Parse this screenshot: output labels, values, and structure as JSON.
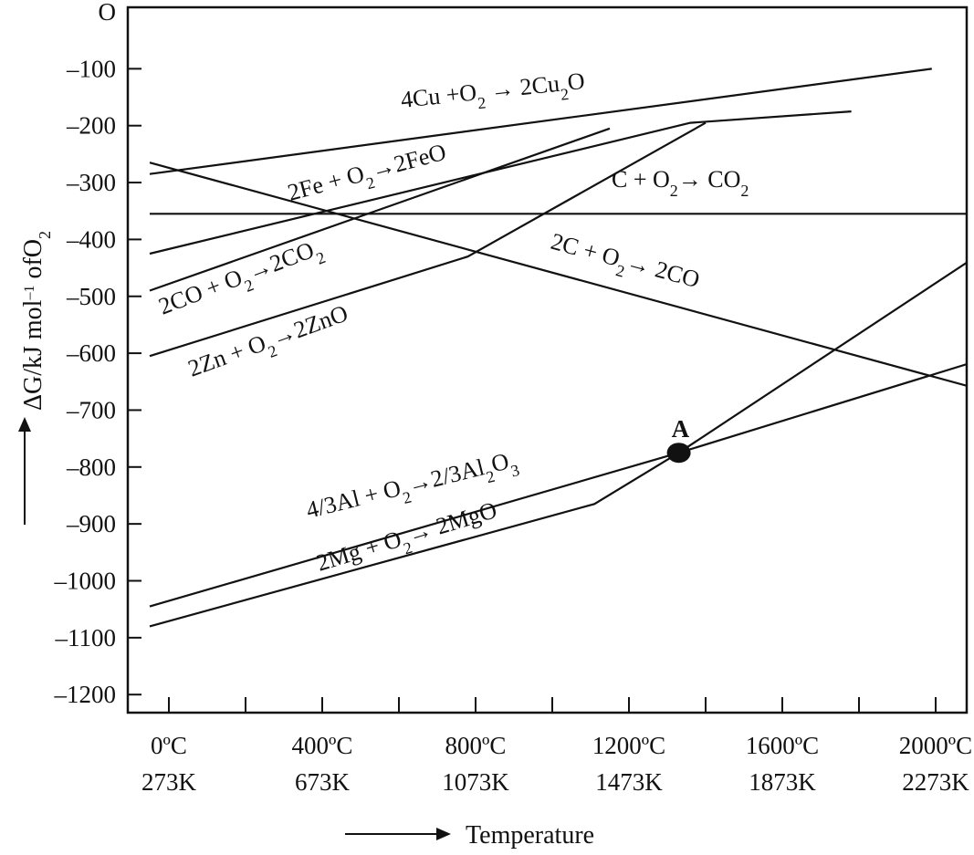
{
  "chart_data": {
    "type": "line",
    "title": "",
    "xlabel": "Temperature",
    "ylabel": "ΔG/kJ mol⁻¹ ofO₂",
    "xlim": [
      -50,
      2150
    ],
    "ylim": [
      -1280,
      0
    ],
    "grid": false,
    "y_ticks": [
      0,
      -100,
      -200,
      -300,
      -400,
      -500,
      -600,
      -700,
      -800,
      -900,
      -1000,
      -1100,
      -1200
    ],
    "y_tick_labels": [
      "O",
      "–100",
      "–200",
      "–300",
      "–400",
      "–500",
      "–600",
      "–700",
      "–800",
      "–900",
      "–1000",
      "–1100",
      "–1200"
    ],
    "x_ticks": [
      0,
      200,
      400,
      600,
      800,
      1000,
      1200,
      1400,
      1600,
      1800,
      2000
    ],
    "x_tick_labels": [
      {
        "x": 0,
        "c": "0ºC",
        "k": "273K"
      },
      {
        "x": 400,
        "c": "400ºC",
        "k": "673K"
      },
      {
        "x": 800,
        "c": "800ºC",
        "k": "1073K"
      },
      {
        "x": 1200,
        "c": "1200ºC",
        "k": "1473K"
      },
      {
        "x": 1600,
        "c": "1600ºC",
        "k": "1873K"
      },
      {
        "x": 2000,
        "c": "2000ºC",
        "k": "2273K"
      }
    ],
    "series": [
      {
        "id": "cu",
        "name": "4Cu +O₂ → 2Cu₂O",
        "points": [
          [
            -50,
            -285
          ],
          [
            1990,
            -100
          ]
        ]
      },
      {
        "id": "fe",
        "name": "2Fe + O₂→2FeO",
        "points": [
          [
            -50,
            -425
          ],
          [
            1360,
            -195
          ],
          [
            1780,
            -175
          ]
        ]
      },
      {
        "id": "co",
        "name": "2CO + O₂→2CO₂",
        "points": [
          [
            -50,
            -490
          ],
          [
            1150,
            -205
          ]
        ]
      },
      {
        "id": "zn",
        "name": "2Zn + O₂→2ZnO",
        "points": [
          [
            -50,
            -605
          ],
          [
            780,
            -430
          ],
          [
            1400,
            -195
          ]
        ]
      },
      {
        "id": "c_co2",
        "name": "C + O₂→ CO₂",
        "points": [
          [
            -50,
            -355
          ],
          [
            2150,
            -355
          ]
        ]
      },
      {
        "id": "c_co",
        "name": "2C + O₂→ 2CO",
        "points": [
          [
            -50,
            -265
          ],
          [
            2150,
            -670
          ]
        ]
      },
      {
        "id": "al",
        "name": "4/3Al + O₂→2/3Al₂O₃",
        "points": [
          [
            -50,
            -1045
          ],
          [
            1330,
            -775
          ],
          [
            2150,
            -605
          ]
        ]
      },
      {
        "id": "mg",
        "name": "2Mg + O₂→ 2MgO",
        "points": [
          [
            -50,
            -1080
          ],
          [
            1110,
            -865
          ],
          [
            1330,
            -775
          ],
          [
            2150,
            -410
          ]
        ]
      }
    ],
    "annotations": [
      {
        "id": "point-a",
        "label": "A",
        "x": 1330,
        "y": -775
      }
    ],
    "colors": {
      "line": "#111111",
      "background": "#ffffff"
    }
  }
}
